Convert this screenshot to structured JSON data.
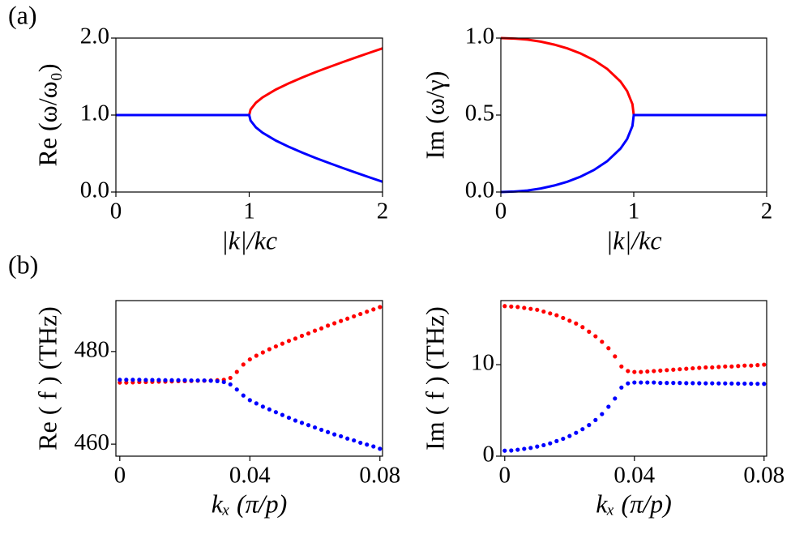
{
  "panel_labels": [
    "(a)",
    "(b)"
  ],
  "chart_data": [
    {
      "type": "line",
      "xlabel": "|k|/kc",
      "ylabel": "Re (ω/ω₀)",
      "x": [
        0,
        0.1,
        0.2,
        0.3,
        0.4,
        0.5,
        0.6,
        0.7,
        0.8,
        0.9,
        0.95,
        0.99,
        1,
        1.01,
        1.05,
        1.1,
        1.2,
        1.3,
        1.4,
        1.5,
        1.6,
        1.7,
        1.8,
        1.9,
        2
      ],
      "series": [
        {
          "color": "#ff0000",
          "values": [
            1,
            1,
            1,
            1,
            1,
            1,
            1,
            1,
            1,
            1,
            1,
            1,
            1,
            1.071,
            1.16,
            1.229,
            1.332,
            1.415,
            1.49,
            1.559,
            1.624,
            1.687,
            1.748,
            1.808,
            1.866
          ]
        },
        {
          "color": "#0000ff",
          "values": [
            1,
            1,
            1,
            1,
            1,
            1,
            1,
            1,
            1,
            1,
            1,
            1,
            1,
            0.929,
            0.84,
            0.771,
            0.668,
            0.585,
            0.51,
            0.441,
            0.376,
            0.313,
            0.252,
            0.192,
            0.134
          ]
        }
      ],
      "xlim": [
        0,
        2
      ],
      "xticks": [
        0,
        1,
        2
      ],
      "ylim": [
        0,
        2
      ],
      "yticks": [
        {
          "value": 0,
          "label": "0.0"
        },
        {
          "value": 1,
          "label": "1.0"
        },
        {
          "value": 2,
          "label": "2.0"
        }
      ]
    },
    {
      "type": "line",
      "xlabel": "|k|/kc",
      "ylabel": "Im (ω/γ)",
      "x": [
        0,
        0.1,
        0.2,
        0.3,
        0.4,
        0.5,
        0.6,
        0.7,
        0.8,
        0.9,
        0.95,
        0.99,
        1,
        1.01,
        1.05,
        1.1,
        1.2,
        1.3,
        1.4,
        1.5,
        1.6,
        1.7,
        1.8,
        1.9,
        2
      ],
      "series": [
        {
          "color": "#ff0000",
          "values": [
            1,
            0.997,
            0.99,
            0.977,
            0.958,
            0.933,
            0.9,
            0.857,
            0.8,
            0.718,
            0.656,
            0.571,
            0.5,
            0.5,
            0.5,
            0.5,
            0.5,
            0.5,
            0.5,
            0.5,
            0.5,
            0.5,
            0.5,
            0.5,
            0.5
          ]
        },
        {
          "color": "#0000ff",
          "values": [
            0,
            0.003,
            0.01,
            0.023,
            0.042,
            0.067,
            0.1,
            0.143,
            0.2,
            0.282,
            0.344,
            0.429,
            0.5,
            0.5,
            0.5,
            0.5,
            0.5,
            0.5,
            0.5,
            0.5,
            0.5,
            0.5,
            0.5,
            0.5,
            0.5
          ]
        }
      ],
      "xlim": [
        0,
        2
      ],
      "xticks": [
        0,
        1,
        2
      ],
      "ylim": [
        0,
        1
      ],
      "yticks": [
        {
          "value": 0,
          "label": "0.0"
        },
        {
          "value": 0.5,
          "label": "0.5"
        },
        {
          "value": 1,
          "label": "1.0"
        }
      ]
    },
    {
      "type": "scatter",
      "xlabel": "kₓ (π/p)",
      "ylabel": "Re ( f ) (THz)",
      "x": [
        0,
        0.002,
        0.004,
        0.006,
        0.008,
        0.01,
        0.012,
        0.014,
        0.016,
        0.018,
        0.02,
        0.022,
        0.024,
        0.026,
        0.028,
        0.03,
        0.032,
        0.034,
        0.036,
        0.038,
        0.04,
        0.042,
        0.044,
        0.046,
        0.048,
        0.05,
        0.052,
        0.054,
        0.056,
        0.058,
        0.06,
        0.062,
        0.064,
        0.066,
        0.068,
        0.07,
        0.072,
        0.074,
        0.076,
        0.078,
        0.08
      ],
      "series": [
        {
          "color": "#ff0000",
          "values": [
            473.3,
            473.3,
            473.35,
            473.4,
            473.4,
            473.45,
            473.5,
            473.5,
            473.55,
            473.6,
            473.6,
            473.65,
            473.7,
            473.7,
            473.75,
            473.8,
            473.9,
            474.3,
            475.6,
            477.2,
            478.3,
            479.1,
            479.8,
            480.5,
            481.1,
            481.7,
            482.3,
            482.8,
            483.4,
            483.9,
            484.5,
            485,
            485.6,
            486.1,
            486.6,
            487.1,
            487.6,
            488.1,
            488.6,
            489.1,
            489.6
          ]
        },
        {
          "color": "#0000ff",
          "values": [
            473.9,
            473.9,
            473.9,
            473.9,
            473.85,
            473.85,
            473.85,
            473.8,
            473.8,
            473.8,
            473.8,
            473.75,
            473.75,
            473.75,
            473.7,
            473.6,
            473.4,
            472.9,
            471.8,
            470.5,
            469.5,
            468.8,
            468.1,
            467.5,
            466.9,
            466.3,
            465.7,
            465.1,
            464.6,
            464.1,
            463.6,
            463.1,
            462.6,
            462.1,
            461.7,
            461.2,
            460.8,
            460.3,
            459.9,
            459.5,
            459
          ]
        }
      ],
      "xlim": [
        -0.0012,
        0.0808
      ],
      "xticks": [
        0,
        0.04,
        0.08
      ],
      "ylim": [
        457.4,
        491
      ],
      "yticks": [
        460,
        480
      ]
    },
    {
      "type": "scatter",
      "xlabel": "kₓ (π/p)",
      "ylabel": "Im ( f ) (THz)",
      "x": [
        0,
        0.002,
        0.004,
        0.006,
        0.008,
        0.01,
        0.012,
        0.014,
        0.016,
        0.018,
        0.02,
        0.022,
        0.024,
        0.026,
        0.028,
        0.03,
        0.032,
        0.034,
        0.036,
        0.038,
        0.04,
        0.042,
        0.044,
        0.046,
        0.048,
        0.05,
        0.052,
        0.054,
        0.056,
        0.058,
        0.06,
        0.062,
        0.064,
        0.066,
        0.068,
        0.07,
        0.072,
        0.074,
        0.076,
        0.078,
        0.08
      ],
      "series": [
        {
          "color": "#ff0000",
          "values": [
            16.4,
            16.35,
            16.3,
            16.2,
            16.1,
            16,
            15.8,
            15.6,
            15.4,
            15.1,
            14.8,
            14.5,
            14.1,
            13.6,
            13.1,
            12.5,
            11.8,
            10.9,
            9.8,
            9.3,
            9.2,
            9.2,
            9.25,
            9.3,
            9.35,
            9.4,
            9.45,
            9.5,
            9.55,
            9.6,
            9.65,
            9.7,
            9.7,
            9.75,
            9.8,
            9.8,
            9.85,
            9.9,
            9.9,
            9.95,
            10
          ]
        },
        {
          "color": "#0000ff",
          "values": [
            0.6,
            0.62,
            0.7,
            0.8,
            0.9,
            1.05,
            1.2,
            1.4,
            1.65,
            1.9,
            2.2,
            2.55,
            2.95,
            3.4,
            3.95,
            4.6,
            5.4,
            6.3,
            7.5,
            7.95,
            8.05,
            8.05,
            8.05,
            8.05,
            8,
            8,
            8,
            8,
            7.98,
            7.98,
            7.97,
            7.96,
            7.96,
            7.95,
            7.95,
            7.94,
            7.93,
            7.93,
            7.92,
            7.91,
            7.9
          ]
        }
      ],
      "xlim": [
        -0.0012,
        0.0808
      ],
      "xticks": [
        0,
        0.04,
        0.08
      ],
      "ylim": [
        0,
        17
      ],
      "yticks": [
        0,
        10
      ]
    }
  ]
}
